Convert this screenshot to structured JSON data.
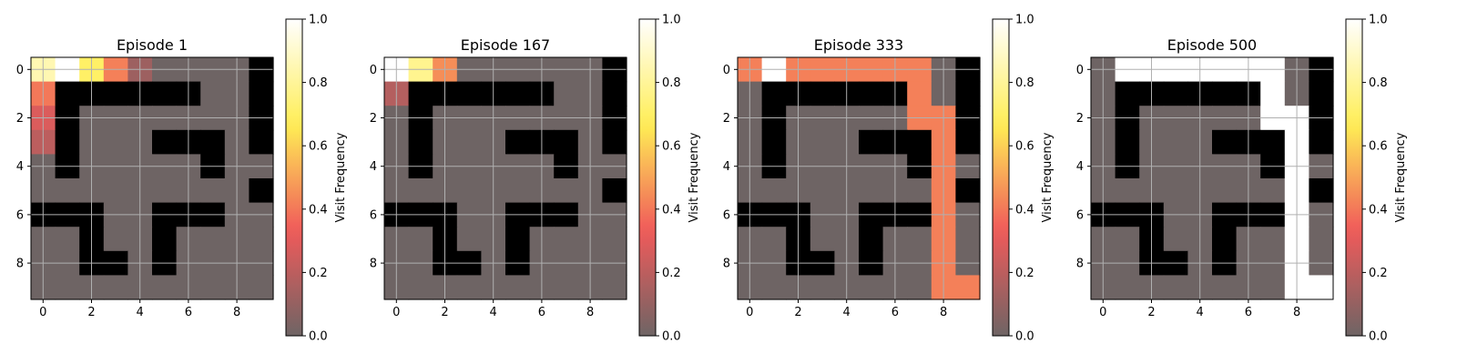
{
  "chart_data": {
    "type": "heatmap",
    "colormap": [
      "#6e6464",
      "#f05a5a",
      "#ffee55",
      "#ffffff"
    ],
    "grid": true,
    "x_ticks": [
      "0",
      "2",
      "4",
      "6",
      "8"
    ],
    "y_ticks": [
      "0",
      "2",
      "4",
      "6",
      "8"
    ],
    "colorbar_label": "Visit Frequency",
    "colorbar_ticks": [
      "0.0",
      "0.2",
      "0.4",
      "0.6",
      "0.8",
      "1.0"
    ],
    "clim": [
      0,
      1
    ],
    "wall_color": "#000000",
    "walls": [
      [
        0,
        9
      ],
      [
        1,
        1
      ],
      [
        1,
        2
      ],
      [
        1,
        3
      ],
      [
        1,
        4
      ],
      [
        1,
        5
      ],
      [
        1,
        6
      ],
      [
        1,
        9
      ],
      [
        2,
        1
      ],
      [
        2,
        9
      ],
      [
        3,
        1
      ],
      [
        3,
        5
      ],
      [
        3,
        6
      ],
      [
        3,
        7
      ],
      [
        3,
        9
      ],
      [
        4,
        1
      ],
      [
        4,
        7
      ],
      [
        5,
        9
      ],
      [
        6,
        0
      ],
      [
        6,
        1
      ],
      [
        6,
        2
      ],
      [
        6,
        5
      ],
      [
        6,
        6
      ],
      [
        6,
        7
      ],
      [
        7,
        2
      ],
      [
        7,
        5
      ],
      [
        8,
        2
      ],
      [
        8,
        3
      ],
      [
        8,
        5
      ]
    ],
    "panels": [
      {
        "title": "Episode 1",
        "visits": [
          [
            0,
            0,
            0.85
          ],
          [
            0,
            1,
            1.0
          ],
          [
            0,
            2,
            0.7
          ],
          [
            0,
            3,
            0.42
          ],
          [
            0,
            4,
            0.12
          ],
          [
            1,
            0,
            0.4
          ],
          [
            2,
            0,
            0.28
          ],
          [
            3,
            0,
            0.2
          ]
        ]
      },
      {
        "title": "Episode 167",
        "visits": [
          [
            0,
            0,
            1.0
          ],
          [
            0,
            1,
            0.78
          ],
          [
            0,
            2,
            0.45
          ],
          [
            1,
            0,
            0.18
          ]
        ]
      },
      {
        "title": "Episode 333",
        "visits": [
          [
            0,
            0,
            0.42
          ],
          [
            0,
            1,
            1.0
          ],
          [
            0,
            2,
            0.42
          ],
          [
            0,
            3,
            0.42
          ],
          [
            0,
            4,
            0.42
          ],
          [
            0,
            5,
            0.42
          ],
          [
            0,
            6,
            0.42
          ],
          [
            0,
            7,
            0.42
          ],
          [
            1,
            7,
            0.42
          ],
          [
            2,
            7,
            0.42
          ],
          [
            2,
            8,
            0.42
          ],
          [
            3,
            8,
            0.42
          ],
          [
            4,
            8,
            0.42
          ],
          [
            5,
            8,
            0.42
          ],
          [
            6,
            8,
            0.42
          ],
          [
            7,
            8,
            0.42
          ],
          [
            8,
            8,
            0.42
          ],
          [
            9,
            8,
            0.42
          ],
          [
            9,
            9,
            0.42
          ]
        ]
      },
      {
        "title": "Episode 500",
        "visits": [
          [
            0,
            1,
            1.0
          ],
          [
            0,
            2,
            1.0
          ],
          [
            0,
            3,
            1.0
          ],
          [
            0,
            4,
            1.0
          ],
          [
            0,
            5,
            1.0
          ],
          [
            0,
            6,
            1.0
          ],
          [
            0,
            7,
            1.0
          ],
          [
            1,
            7,
            1.0
          ],
          [
            2,
            7,
            1.0
          ],
          [
            2,
            8,
            1.0
          ],
          [
            3,
            8,
            1.0
          ],
          [
            4,
            8,
            1.0
          ],
          [
            5,
            8,
            1.0
          ],
          [
            6,
            8,
            1.0
          ],
          [
            7,
            8,
            1.0
          ],
          [
            8,
            8,
            1.0
          ],
          [
            9,
            8,
            1.0
          ],
          [
            9,
            9,
            1.0
          ]
        ]
      }
    ]
  }
}
